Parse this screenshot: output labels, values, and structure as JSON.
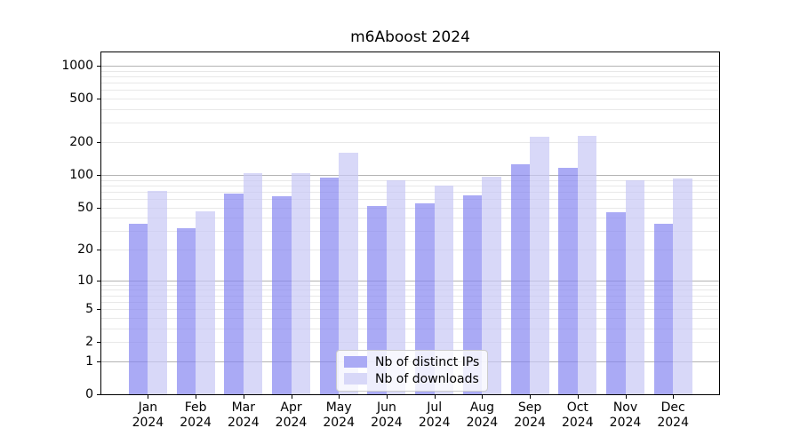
{
  "title": "m6Aboost 2024",
  "chart_data": {
    "type": "bar",
    "title": "m6Aboost 2024",
    "categories": [
      "Jan",
      "Feb",
      "Mar",
      "Apr",
      "May",
      "Jun",
      "Jul",
      "Aug",
      "Sep",
      "Oct",
      "Nov",
      "Dec"
    ],
    "x_year_label": "2024",
    "series": [
      {
        "name": "Nb of distinct IPs",
        "color": "#aaaaf5",
        "values": [
          35,
          32,
          67,
          64,
          95,
          51,
          54,
          65,
          125,
          117,
          45,
          35
        ]
      },
      {
        "name": "Nb of downloads",
        "color": "#d8d8f8",
        "values": [
          71,
          46,
          103,
          103,
          160,
          90,
          80,
          97,
          225,
          228,
          90,
          93
        ]
      }
    ],
    "y_ticks": [
      0,
      1,
      2,
      5,
      10,
      20,
      50,
      100,
      200,
      500,
      1000
    ],
    "y_scale": "log10(1+v)",
    "ylim": [
      0,
      1330
    ],
    "grid": true,
    "grid_major_values": [
      1,
      10,
      100,
      1000
    ],
    "grid_minor_values": [
      2,
      3,
      4,
      5,
      6,
      7,
      8,
      9,
      20,
      30,
      40,
      50,
      60,
      70,
      80,
      90,
      200,
      300,
      400,
      500,
      600,
      700,
      800,
      900
    ],
    "legend_position": "inside-bottom-center",
    "xlabel": "",
    "ylabel": ""
  },
  "colors": {
    "background": "#ffffff",
    "bar_ips": "#aaaaf5",
    "bar_ips_fill": "rgba(134,134,241,0.7)",
    "bar_downloads": "#d8d8f8",
    "bar_downloads_fill": "rgba(199,199,245,0.7)",
    "grid_major": "#b3b3b3",
    "grid_minor": "#e8e8e8",
    "axis": "#000000",
    "text": "#000000",
    "legend_border": "#cccccc"
  }
}
